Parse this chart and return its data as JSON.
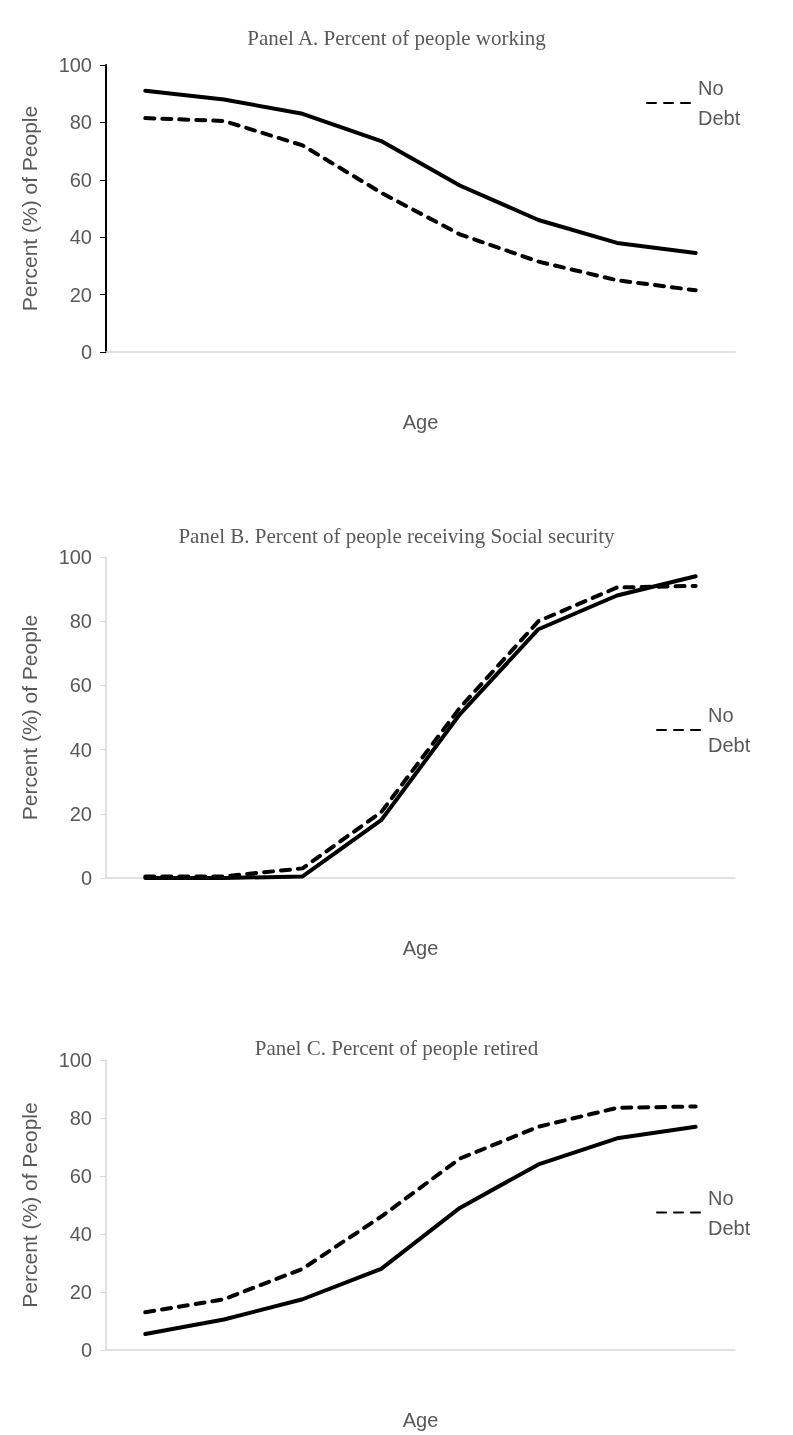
{
  "chart_data": [
    {
      "type": "line",
      "title": "Panel A. Percent of people working",
      "xlabel": "Age",
      "ylabel": "Percent (%) of People",
      "categories": [
        null,
        null,
        null,
        null,
        null,
        null,
        null,
        null
      ],
      "ylim": [
        0,
        100
      ],
      "yticks": [
        0,
        20,
        40,
        60,
        80,
        100
      ],
      "grid": false,
      "legend": "top right",
      "marker": "none",
      "series": [
        {
          "color": "#000000",
          "line_style": "solid",
          "values": [
            91,
            88,
            83,
            73.5,
            58,
            46,
            38,
            34.5
          ]
        },
        {
          "name": "No Debt",
          "color": "#000000",
          "line_style": "dashed",
          "values": [
            81.5,
            80.5,
            72,
            55.5,
            41,
            31.5,
            25,
            21.5
          ]
        }
      ]
    },
    {
      "type": "line",
      "title": "Panel B. Percent of people receiving Social security",
      "xlabel": "Age",
      "ylabel": "Percent (%) of People",
      "categories": [
        null,
        null,
        null,
        null,
        null,
        null,
        null,
        null
      ],
      "ylim": [
        0,
        100
      ],
      "yticks": [
        0,
        20,
        40,
        60,
        80,
        100
      ],
      "grid": false,
      "legend": "right",
      "marker": "none",
      "series": [
        {
          "color": "#000000",
          "line_style": "solid",
          "values": [
            0,
            0,
            0.5,
            18,
            51,
            77.5,
            88,
            94
          ]
        },
        {
          "name": "No Debt",
          "color": "#000000",
          "line_style": "dashed",
          "values": [
            0.5,
            0.5,
            3,
            20.5,
            53,
            80,
            90.5,
            91
          ]
        }
      ]
    },
    {
      "type": "line",
      "title": "Panel C. Percent of people retired",
      "xlabel": "Age",
      "ylabel": "Percent (%) of People",
      "categories": [
        null,
        null,
        null,
        null,
        null,
        null,
        null,
        null
      ],
      "ylim": [
        0,
        100
      ],
      "yticks": [
        0,
        20,
        40,
        60,
        80,
        100
      ],
      "grid": false,
      "legend": "right",
      "marker": "none",
      "series": [
        {
          "color": "#000000",
          "line_style": "solid",
          "values": [
            5.5,
            10.5,
            17.5,
            28,
            49,
            64,
            73,
            77
          ]
        },
        {
          "name": "No Debt",
          "color": "#000000",
          "line_style": "dashed",
          "values": [
            13,
            17.5,
            28,
            46,
            66,
            77,
            83.5,
            84
          ]
        }
      ]
    }
  ]
}
